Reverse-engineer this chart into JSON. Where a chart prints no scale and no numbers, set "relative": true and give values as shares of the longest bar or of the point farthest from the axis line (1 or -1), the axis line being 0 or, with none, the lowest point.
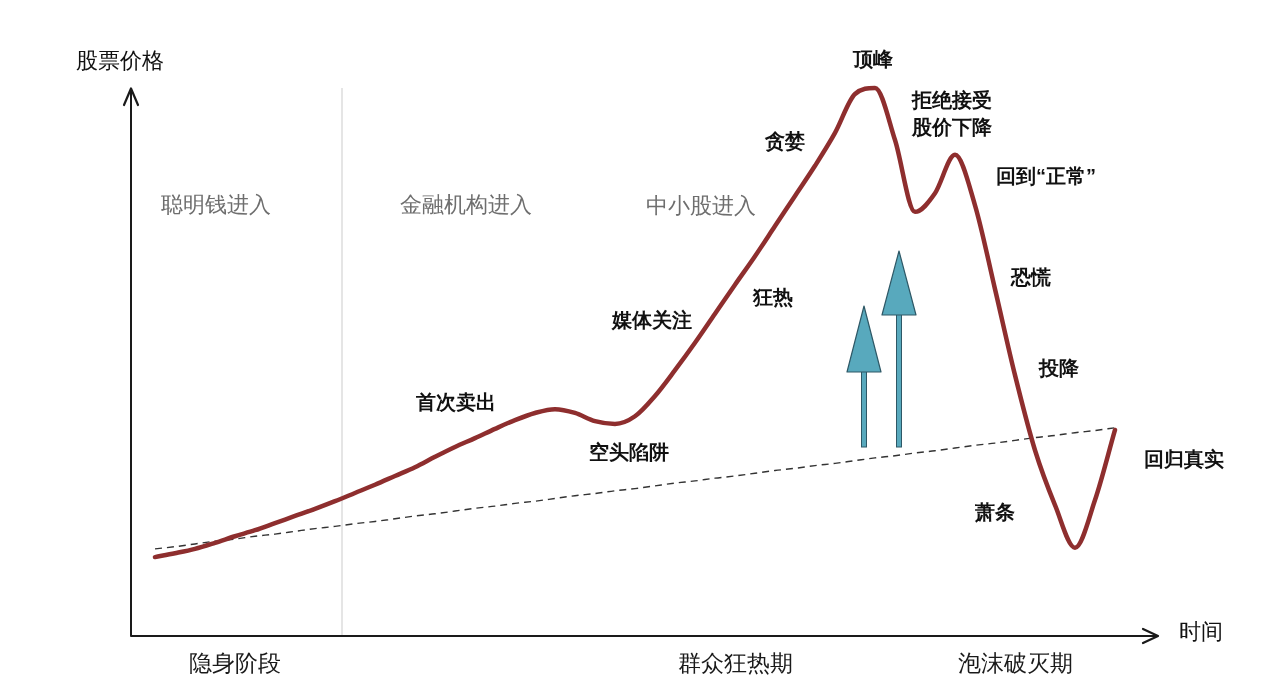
{
  "chart_data": {
    "type": "line",
    "relative": true,
    "ylabel": "股票价格",
    "xlabel": "时间",
    "categories": [
      null,
      null,
      null,
      null,
      "隐身阶段",
      null,
      null,
      null,
      null,
      null,
      null,
      null,
      null,
      null,
      null,
      null,
      null,
      null,
      null,
      null,
      null,
      null,
      null,
      null,
      null,
      null,
      null,
      null,
      null,
      "群众狂热期",
      null,
      null,
      null,
      null,
      null,
      null,
      null,
      null,
      null,
      null,
      null,
      null,
      null,
      "泡沫破灭期",
      null,
      null,
      null,
      null,
      null
    ],
    "series": [
      {
        "color": "#8e2e2e",
        "values": [
          0.144,
          0.151,
          0.159,
          0.17,
          0.182,
          0.193,
          0.206,
          0.219,
          0.232,
          0.246,
          0.261,
          0.276,
          0.292,
          0.308,
          0.327,
          0.345,
          0.361,
          0.378,
          0.394,
          0.407,
          0.414,
          0.407,
          0.392,
          0.387,
          0.401,
          0.438,
          0.485,
          0.535,
          0.588,
          0.641,
          0.693,
          0.748,
          0.803,
          0.858,
          0.918,
          0.989,
          1.0,
          0.905,
          0.774,
          0.808,
          0.878,
          0.786,
          0.633,
          0.476,
          0.339,
          0.239,
          0.161,
          0.248,
          0.376
        ]
      },
      {
        "color": "#333333",
        "line_style": "dashed",
        "values": [
          0.159,
          0.163,
          0.168,
          0.173,
          0.177,
          0.182,
          0.186,
          0.191,
          0.196,
          0.2,
          0.205,
          0.209,
          0.214,
          0.219,
          0.223,
          0.228,
          0.233,
          0.237,
          0.242,
          0.246,
          0.251,
          0.256,
          0.26,
          0.265,
          0.269,
          0.274,
          0.279,
          0.283,
          0.288,
          0.292,
          0.297,
          0.302,
          0.306,
          0.311,
          0.315,
          0.32,
          0.325,
          0.329,
          0.334,
          0.338,
          0.343,
          0.348,
          0.352,
          0.357,
          0.362,
          0.366,
          0.371,
          0.375,
          0.38
        ]
      }
    ],
    "annotations": [
      "聪明钱进入",
      "金融机构进入",
      "中小股进入",
      "首次卖出",
      "空头陷阱",
      "媒体关注",
      "狂热",
      "贪婪",
      "顶峰",
      "拒绝接受股价下降",
      "回到“正常”",
      "恐慌",
      "投降",
      "萧条",
      "回归真实"
    ]
  }
}
